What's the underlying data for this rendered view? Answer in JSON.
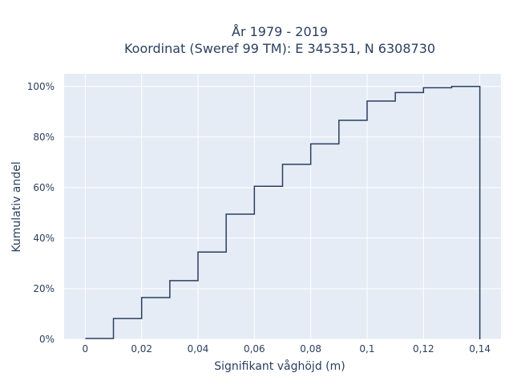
{
  "chart_data": {
    "type": "line",
    "subtype": "cumulative-step",
    "title_lines": [
      "År 1979 - 2019",
      "Koordinat (Sweref 99 TM): E 345351, N 6308730"
    ],
    "xlabel": "Signifikant våghöjd (m)",
    "ylabel": "Kumulativ andel",
    "xlim": [
      -0.0075,
      0.1475
    ],
    "ylim": [
      0,
      1.05
    ],
    "x_ticks": [
      0,
      0.02,
      0.04,
      0.06,
      0.08,
      0.1,
      0.12,
      0.14
    ],
    "x_tick_labels": [
      "0",
      "0,02",
      "0,04",
      "0,06",
      "0,08",
      "0,1",
      "0,12",
      "0,14"
    ],
    "y_ticks": [
      0,
      0.2,
      0.4,
      0.6,
      0.8,
      1.0
    ],
    "y_tick_labels": [
      "0%",
      "20%",
      "40%",
      "60%",
      "80%",
      "100%"
    ],
    "grid": true,
    "legend": "none",
    "colors": {
      "plot_background": "#e5ecf6",
      "grid": "#ffffff",
      "line": "#2a3f5f",
      "text": "#2a3f5f"
    },
    "series": [
      {
        "x": [
          0,
          0.01,
          0.02,
          0.03,
          0.04,
          0.05,
          0.06,
          0.07,
          0.08,
          0.09,
          0.1,
          0.11,
          0.12,
          0.13,
          0.14
        ],
        "y": [
          0.003,
          0.082,
          0.165,
          0.232,
          0.345,
          0.495,
          0.605,
          0.692,
          0.773,
          0.866,
          0.942,
          0.976,
          0.995,
          1.0,
          0
        ]
      }
    ]
  }
}
